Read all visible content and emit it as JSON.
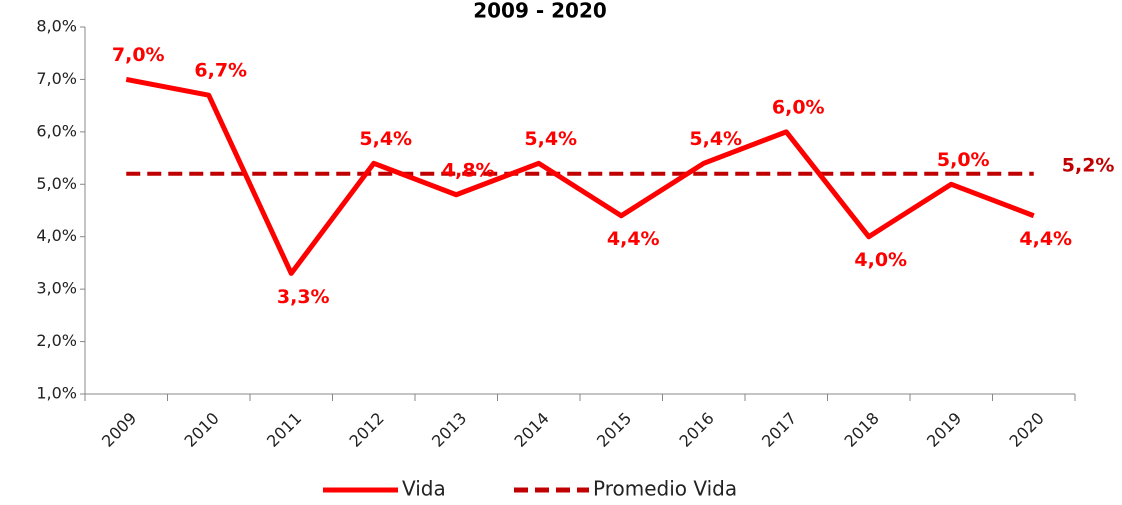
{
  "chart_data": {
    "type": "line",
    "title": "2009 - 2020",
    "categories": [
      "2009",
      "2010",
      "2011",
      "2012",
      "2013",
      "2014",
      "2015",
      "2016",
      "2017",
      "2018",
      "2019",
      "2020"
    ],
    "series": [
      {
        "name": "Vida",
        "color": "#ff0000",
        "values": [
          7.0,
          6.7,
          3.3,
          5.4,
          4.8,
          5.4,
          4.4,
          5.4,
          6.0,
          4.0,
          5.0,
          4.4
        ],
        "value_labels": [
          "7,0%",
          "6,7%",
          "3,3%",
          "5,4%",
          "4,8%",
          "5,4%",
          "4,4%",
          "5,4%",
          "6,0%",
          "4,0%",
          "5,0%",
          "4,4%"
        ]
      }
    ],
    "average": {
      "name": "Promedio Vida",
      "color": "#c00000",
      "value": 5.2,
      "value_label": "5,2%"
    },
    "ylim": [
      1,
      8
    ],
    "yticks": [
      {
        "value": 1,
        "label": "1,0%"
      },
      {
        "value": 2,
        "label": "2,0%"
      },
      {
        "value": 3,
        "label": "3,0%"
      },
      {
        "value": 4,
        "label": "4,0%"
      },
      {
        "value": 5,
        "label": "5,0%"
      },
      {
        "value": 6,
        "label": "6,0%"
      },
      {
        "value": 7,
        "label": "7,0%"
      },
      {
        "value": 8,
        "label": "8,0%"
      }
    ]
  }
}
